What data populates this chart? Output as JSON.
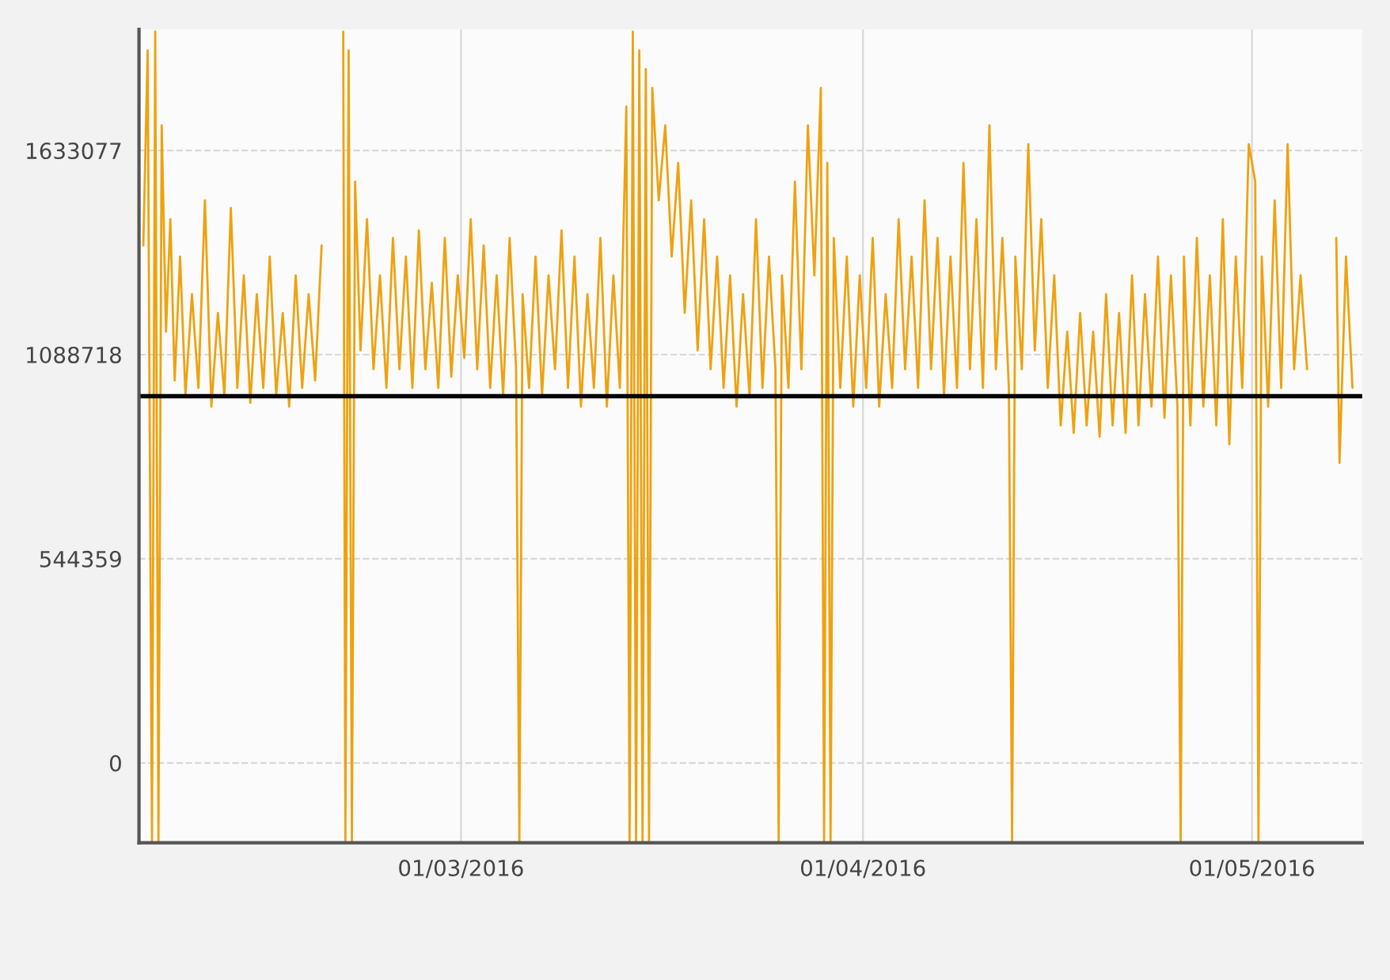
{
  "chart_data": {
    "type": "line",
    "x": [
      "2016-02-05T12:00",
      "2016-02-05T20:00",
      "2016-02-06T04:00",
      "2016-02-06T10:00",
      "2016-02-06T16:00",
      "2016-02-06T22:00",
      "2016-02-07T06:00",
      "2016-02-07T14:00",
      "2016-02-07T22:00",
      "2016-02-08T08:00",
      "2016-02-08T18:00",
      "2016-02-09T06:00",
      "2016-02-09T18:00",
      "2016-02-10T06:00",
      "2016-02-10T18:00",
      "2016-02-11T06:00",
      "2016-02-11T18:00",
      "2016-02-12T06:00",
      "2016-02-12T18:00",
      "2016-02-13T06:00",
      "2016-02-13T18:00",
      "2016-02-14T06:00",
      "2016-02-14T18:00",
      "2016-02-15T06:00",
      "2016-02-15T18:00",
      "2016-02-16T06:00",
      "2016-02-16T18:00",
      "2016-02-17T06:00",
      "2016-02-17T18:00",
      "2016-02-18T06:00",
      "2016-02-18T18:00",
      "2016-02-19T06:00",
      "2016-02-19T18:00",
      "2016-02-20T22:00",
      "2016-02-21T02:00",
      "2016-02-21T08:00",
      "2016-02-21T14:00",
      "2016-02-21T20:00",
      "2016-02-22T06:00",
      "2016-02-22T18:00",
      "2016-02-23T06:00",
      "2016-02-23T18:00",
      "2016-02-24T06:00",
      "2016-02-24T18:00",
      "2016-02-25T06:00",
      "2016-02-25T18:00",
      "2016-02-26T06:00",
      "2016-02-26T18:00",
      "2016-02-27T06:00",
      "2016-02-27T18:00",
      "2016-02-28T06:00",
      "2016-02-28T18:00",
      "2016-02-29T06:00",
      "2016-02-29T18:00",
      "2016-03-01T06:00",
      "2016-03-01T18:00",
      "2016-03-02T06:00",
      "2016-03-02T18:00",
      "2016-03-03T06:00",
      "2016-03-03T18:00",
      "2016-03-04T06:00",
      "2016-03-04T18:00",
      "2016-03-05T06:00",
      "2016-03-05T12:00",
      "2016-03-05T18:00",
      "2016-03-06T06:00",
      "2016-03-06T18:00",
      "2016-03-07T06:00",
      "2016-03-07T18:00",
      "2016-03-08T06:00",
      "2016-03-08T18:00",
      "2016-03-09T06:00",
      "2016-03-09T18:00",
      "2016-03-10T06:00",
      "2016-03-10T18:00",
      "2016-03-11T06:00",
      "2016-03-11T18:00",
      "2016-03-12T06:00",
      "2016-03-12T18:00",
      "2016-03-13T06:00",
      "2016-03-13T18:00",
      "2016-03-14T00:00",
      "2016-03-14T06:00",
      "2016-03-14T12:00",
      "2016-03-14T18:00",
      "2016-03-15T00:00",
      "2016-03-15T06:00",
      "2016-03-15T12:00",
      "2016-03-15T18:00",
      "2016-03-16T06:00",
      "2016-03-16T18:00",
      "2016-03-17T06:00",
      "2016-03-17T18:00",
      "2016-03-18T06:00",
      "2016-03-18T18:00",
      "2016-03-19T06:00",
      "2016-03-19T18:00",
      "2016-03-20T06:00",
      "2016-03-20T18:00",
      "2016-03-21T06:00",
      "2016-03-21T18:00",
      "2016-03-22T06:00",
      "2016-03-22T18:00",
      "2016-03-23T06:00",
      "2016-03-23T18:00",
      "2016-03-24T06:00",
      "2016-03-24T18:00",
      "2016-03-25T06:00",
      "2016-03-25T12:00",
      "2016-03-25T18:00",
      "2016-03-26T06:00",
      "2016-03-26T18:00",
      "2016-03-27T06:00",
      "2016-03-27T18:00",
      "2016-03-28T06:00",
      "2016-03-28T18:00",
      "2016-03-29T00:00",
      "2016-03-29T06:00",
      "2016-03-29T12:00",
      "2016-03-29T18:00",
      "2016-03-30T06:00",
      "2016-03-30T18:00",
      "2016-03-31T06:00",
      "2016-03-31T18:00",
      "2016-04-01T06:00",
      "2016-04-01T18:00",
      "2016-04-02T06:00",
      "2016-04-02T18:00",
      "2016-04-03T06:00",
      "2016-04-03T18:00",
      "2016-04-04T06:00",
      "2016-04-04T18:00",
      "2016-04-05T06:00",
      "2016-04-05T18:00",
      "2016-04-06T06:00",
      "2016-04-06T18:00",
      "2016-04-07T06:00",
      "2016-04-07T18:00",
      "2016-04-08T06:00",
      "2016-04-08T18:00",
      "2016-04-09T06:00",
      "2016-04-09T18:00",
      "2016-04-10T06:00",
      "2016-04-10T18:00",
      "2016-04-11T06:00",
      "2016-04-11T18:00",
      "2016-04-12T06:00",
      "2016-04-12T12:00",
      "2016-04-12T18:00",
      "2016-04-13T06:00",
      "2016-04-13T18:00",
      "2016-04-14T06:00",
      "2016-04-14T18:00",
      "2016-04-15T06:00",
      "2016-04-15T18:00",
      "2016-04-16T06:00",
      "2016-04-16T18:00",
      "2016-04-17T06:00",
      "2016-04-17T18:00",
      "2016-04-18T06:00",
      "2016-04-18T18:00",
      "2016-04-19T06:00",
      "2016-04-19T18:00",
      "2016-04-20T06:00",
      "2016-04-20T18:00",
      "2016-04-21T06:00",
      "2016-04-21T18:00",
      "2016-04-22T06:00",
      "2016-04-22T18:00",
      "2016-04-23T06:00",
      "2016-04-23T18:00",
      "2016-04-24T06:00",
      "2016-04-24T18:00",
      "2016-04-25T06:00",
      "2016-04-25T12:00",
      "2016-04-25T18:00",
      "2016-04-26T06:00",
      "2016-04-26T18:00",
      "2016-04-27T06:00",
      "2016-04-27T18:00",
      "2016-04-28T06:00",
      "2016-04-28T18:00",
      "2016-04-29T06:00",
      "2016-04-29T18:00",
      "2016-04-30T06:00",
      "2016-04-30T18:00",
      "2016-05-01T06:00",
      "2016-05-01T12:00",
      "2016-05-01T18:00",
      "2016-05-02T06:00",
      "2016-05-02T18:00",
      "2016-05-03T06:00",
      "2016-05-03T18:00",
      "2016-05-04T06:00",
      "2016-05-04T18:00",
      "2016-05-05T06:00",
      "2016-05-05T18:00",
      "2016-05-07T12:00",
      "2016-05-07T18:00",
      "2016-05-08T06:00",
      "2016-05-08T18:00"
    ],
    "series": [
      {
        "color": "#eea20f",
        "values": [
          1380000,
          1900000,
          -210000,
          1950000,
          -210000,
          1700000,
          1150000,
          1450000,
          1020000,
          1350000,
          980000,
          1250000,
          1000000,
          1500000,
          950000,
          1200000,
          980000,
          1480000,
          1000000,
          1300000,
          960000,
          1250000,
          1000000,
          1350000,
          980000,
          1200000,
          950000,
          1300000,
          1000000,
          1250000,
          1020000,
          1380000,
          null,
          1950000,
          -210000,
          1900000,
          -210000,
          1550000,
          1100000,
          1450000,
          1050000,
          1300000,
          1000000,
          1400000,
          1050000,
          1350000,
          1000000,
          1420000,
          1050000,
          1280000,
          1000000,
          1400000,
          1030000,
          1300000,
          1080000,
          1450000,
          1050000,
          1380000,
          1000000,
          1300000,
          980000,
          1400000,
          1050000,
          -210000,
          1250000,
          1000000,
          1350000,
          980000,
          1300000,
          1050000,
          1420000,
          1000000,
          1350000,
          950000,
          1250000,
          1000000,
          1400000,
          950000,
          1300000,
          1000000,
          1750000,
          -210000,
          1950000,
          -210000,
          1900000,
          -210000,
          1850000,
          -210000,
          1800000,
          1500000,
          1700000,
          1350000,
          1600000,
          1200000,
          1500000,
          1100000,
          1450000,
          1050000,
          1350000,
          1000000,
          1300000,
          950000,
          1250000,
          980000,
          1450000,
          1000000,
          1350000,
          1050000,
          -210000,
          1300000,
          1000000,
          1550000,
          1050000,
          1700000,
          1300000,
          1800000,
          -210000,
          1600000,
          -210000,
          1400000,
          1000000,
          1350000,
          950000,
          1300000,
          1000000,
          1400000,
          950000,
          1250000,
          1000000,
          1450000,
          1050000,
          1350000,
          1000000,
          1500000,
          1050000,
          1400000,
          980000,
          1350000,
          1000000,
          1600000,
          1050000,
          1450000,
          1000000,
          1700000,
          1050000,
          1400000,
          1000000,
          -210000,
          1350000,
          1050000,
          1650000,
          1100000,
          1450000,
          1000000,
          1300000,
          900000,
          1150000,
          880000,
          1200000,
          900000,
          1150000,
          870000,
          1250000,
          900000,
          1200000,
          880000,
          1300000,
          900000,
          1250000,
          950000,
          1350000,
          920000,
          1300000,
          950000,
          -210000,
          1350000,
          900000,
          1400000,
          950000,
          1300000,
          900000,
          1450000,
          850000,
          1350000,
          1000000,
          1650000,
          1550000,
          -210000,
          1350000,
          950000,
          1500000,
          1000000,
          1650000,
          1050000,
          1300000,
          1050000,
          null,
          1400000,
          800000,
          1350000,
          1000000
        ]
      }
    ],
    "xlim": [
      "2016-02-05T04:00",
      "2016-05-09T12:00"
    ],
    "xticks": [
      {
        "value": "2016-03-01",
        "label": "01/03/2016"
      },
      {
        "value": "2016-04-01",
        "label": "01/04/2016"
      },
      {
        "value": "2016-05-01",
        "label": "01/05/2016"
      }
    ],
    "ylim": [
      -213000,
      1956000
    ],
    "yticks": [
      0,
      544359,
      1088718,
      1633077
    ],
    "ref_lines": [
      {
        "axis": "y",
        "value": 978000,
        "color": "#000000"
      }
    ],
    "grid": true,
    "line_style": "solid"
  }
}
